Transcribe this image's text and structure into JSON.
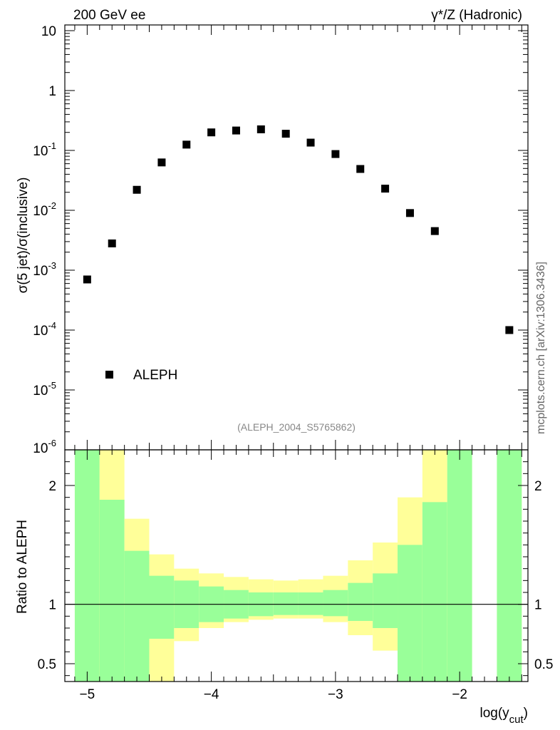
{
  "header": {
    "left_title": "200 GeV ee",
    "right_title": "γ*/Z (Hadronic)"
  },
  "side_label": "mcplots.cern.ch [arXiv:1306.3436]",
  "analysis_label": "(ALEPH_2004_S5765862)",
  "chart_data": [
    {
      "type": "scatter",
      "panel": "main",
      "title": "",
      "xlabel": "",
      "ylabel": "σ(5 jet)/σ(inclusive)",
      "yscale": "log",
      "ylim": [
        1e-06,
        15
      ],
      "xlim": [
        -5.18,
        -1.45
      ],
      "ytick_labels": [
        {
          "base": "10",
          "exp": "-6",
          "value": 1e-06
        },
        {
          "base": "10",
          "exp": "-5",
          "value": 1e-05
        },
        {
          "base": "10",
          "exp": "-4",
          "value": 0.0001
        },
        {
          "base": "10",
          "exp": "-3",
          "value": 0.001
        },
        {
          "base": "10",
          "exp": "-2",
          "value": 0.01
        },
        {
          "base": "10",
          "exp": "-1",
          "value": 0.1
        },
        {
          "base": "1",
          "exp": "",
          "value": 1
        },
        {
          "base": "10",
          "exp": "",
          "value": 10
        }
      ],
      "legend": {
        "label": "ALEPH",
        "position": "bottom-left"
      },
      "series": [
        {
          "name": "ALEPH",
          "x": [
            -5.0,
            -4.8,
            -4.6,
            -4.4,
            -4.2,
            -4.0,
            -3.8,
            -3.6,
            -3.4,
            -3.2,
            -3.0,
            -2.8,
            -2.6,
            -2.4,
            -2.2,
            -1.6
          ],
          "y": [
            0.0007,
            0.0028,
            0.022,
            0.063,
            0.125,
            0.2,
            0.215,
            0.225,
            0.19,
            0.135,
            0.087,
            0.049,
            0.023,
            0.009,
            0.0045,
            0.0001
          ]
        }
      ]
    },
    {
      "type": "bar",
      "panel": "ratio",
      "xlabel": "log(y",
      "xlabel_sub": "cut",
      "xlabel_close": ")",
      "ylabel": "Ratio to ALEPH",
      "ylim": [
        0.35,
        2.3
      ],
      "xlim": [
        -5.18,
        -1.45
      ],
      "yticks": [
        0.5,
        1,
        2
      ],
      "ytick_labels": [
        "0.5",
        "1",
        "2"
      ],
      "xticks": [
        -5,
        -4,
        -3,
        -2
      ],
      "xtick_labels": [
        "−5",
        "−4",
        "−3",
        "−2"
      ],
      "colors": {
        "stat": "#99ff99",
        "total": "#ffff99",
        "reference_line": "#000000"
      },
      "bins": [
        {
          "x0": -5.1,
          "x1": -4.9,
          "green_lo": 0.0,
          "green_hi": 9.0,
          "yellow_lo": 0.0,
          "yellow_hi": 9.0
        },
        {
          "x0": -4.9,
          "x1": -4.7,
          "green_lo": 0.0,
          "green_hi": 1.88,
          "yellow_lo": 0.0,
          "yellow_hi": 9.0
        },
        {
          "x0": -4.7,
          "x1": -4.5,
          "green_lo": 0.0,
          "green_hi": 1.45,
          "yellow_lo": 0.0,
          "yellow_hi": 1.72
        },
        {
          "x0": -4.5,
          "x1": -4.3,
          "green_lo": 0.71,
          "green_hi": 1.24,
          "yellow_lo": 0.0,
          "yellow_hi": 1.42
        },
        {
          "x0": -4.3,
          "x1": -4.1,
          "green_lo": 0.8,
          "green_hi": 1.2,
          "yellow_lo": 0.69,
          "yellow_hi": 1.3
        },
        {
          "x0": -4.1,
          "x1": -3.9,
          "green_lo": 0.85,
          "green_hi": 1.15,
          "yellow_lo": 0.8,
          "yellow_hi": 1.26
        },
        {
          "x0": -3.9,
          "x1": -3.7,
          "green_lo": 0.88,
          "green_hi": 1.12,
          "yellow_lo": 0.85,
          "yellow_hi": 1.23
        },
        {
          "x0": -3.7,
          "x1": -3.5,
          "green_lo": 0.9,
          "green_hi": 1.1,
          "yellow_lo": 0.87,
          "yellow_hi": 1.21
        },
        {
          "x0": -3.5,
          "x1": -3.3,
          "green_lo": 0.91,
          "green_hi": 1.1,
          "yellow_lo": 0.88,
          "yellow_hi": 1.2
        },
        {
          "x0": -3.3,
          "x1": -3.1,
          "green_lo": 0.91,
          "green_hi": 1.1,
          "yellow_lo": 0.88,
          "yellow_hi": 1.21
        },
        {
          "x0": -3.1,
          "x1": -2.9,
          "green_lo": 0.9,
          "green_hi": 1.12,
          "yellow_lo": 0.85,
          "yellow_hi": 1.24
        },
        {
          "x0": -2.9,
          "x1": -2.7,
          "green_lo": 0.86,
          "green_hi": 1.18,
          "yellow_lo": 0.74,
          "yellow_hi": 1.37
        },
        {
          "x0": -2.7,
          "x1": -2.5,
          "green_lo": 0.8,
          "green_hi": 1.26,
          "yellow_lo": 0.61,
          "yellow_hi": 1.52
        },
        {
          "x0": -2.5,
          "x1": -2.3,
          "green_lo": 0.0,
          "green_hi": 1.5,
          "yellow_lo": 0.0,
          "yellow_hi": 1.9
        },
        {
          "x0": -2.3,
          "x1": -2.1,
          "green_lo": 0.0,
          "green_hi": 1.86,
          "yellow_lo": 0.0,
          "yellow_hi": 9.0
        },
        {
          "x0": -2.1,
          "x1": -1.9,
          "green_lo": 0.0,
          "green_hi": 9.0,
          "yellow_lo": 0.0,
          "yellow_hi": 9.0
        },
        {
          "x0": -1.7,
          "x1": -1.5,
          "green_lo": 0.0,
          "green_hi": 9.0,
          "yellow_lo": 0.0,
          "yellow_hi": 9.0
        }
      ]
    }
  ]
}
